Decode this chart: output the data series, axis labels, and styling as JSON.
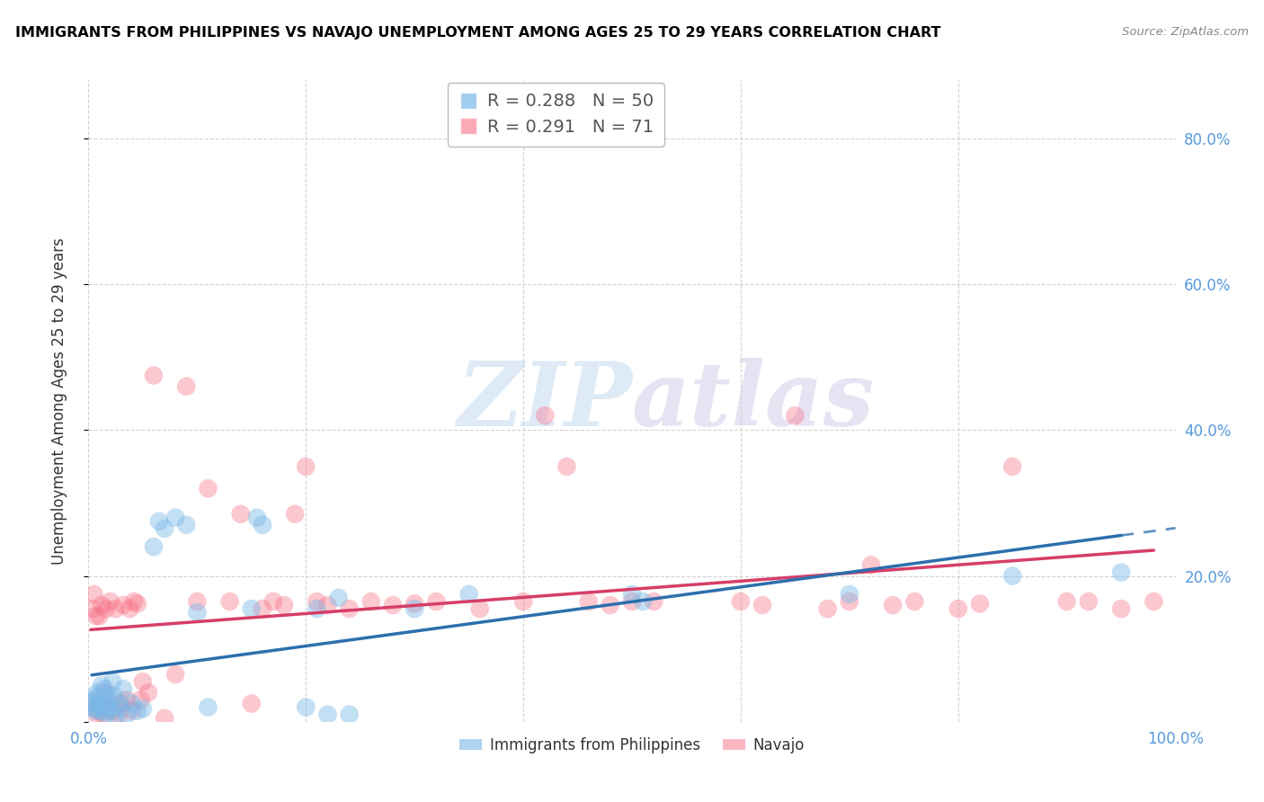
{
  "title": "IMMIGRANTS FROM PHILIPPINES VS NAVAJO UNEMPLOYMENT AMONG AGES 25 TO 29 YEARS CORRELATION CHART",
  "source": "Source: ZipAtlas.com",
  "ylabel": "Unemployment Among Ages 25 to 29 years",
  "xlim": [
    0,
    1.0
  ],
  "ylim": [
    0,
    0.88
  ],
  "legend_r_blue": "R = 0.288",
  "legend_n_blue": "N = 50",
  "legend_r_pink": "R = 0.291",
  "legend_n_pink": "N = 71",
  "blue_color": "#7ab8e8",
  "pink_color": "#f87085",
  "blue_line_color": "#2c6fad",
  "pink_line_color": "#d63e68",
  "watermark_zip": "ZIP",
  "watermark_atlas": "atlas",
  "blue_scatter_x": [
    0.003,
    0.004,
    0.005,
    0.006,
    0.007,
    0.008,
    0.009,
    0.01,
    0.011,
    0.012,
    0.013,
    0.014,
    0.015,
    0.016,
    0.017,
    0.018,
    0.019,
    0.02,
    0.022,
    0.024,
    0.025,
    0.028,
    0.03,
    0.032,
    0.035,
    0.04,
    0.045,
    0.05,
    0.06,
    0.065,
    0.07,
    0.08,
    0.09,
    0.1,
    0.11,
    0.15,
    0.155,
    0.16,
    0.2,
    0.21,
    0.22,
    0.23,
    0.24,
    0.3,
    0.35,
    0.5,
    0.51,
    0.7,
    0.85,
    0.95
  ],
  "blue_scatter_y": [
    0.03,
    0.025,
    0.02,
    0.018,
    0.015,
    0.04,
    0.035,
    0.028,
    0.022,
    0.05,
    0.015,
    0.025,
    0.045,
    0.01,
    0.038,
    0.03,
    0.02,
    0.015,
    0.055,
    0.035,
    0.01,
    0.025,
    0.02,
    0.045,
    0.01,
    0.025,
    0.015,
    0.018,
    0.24,
    0.275,
    0.265,
    0.28,
    0.27,
    0.15,
    0.02,
    0.155,
    0.28,
    0.27,
    0.02,
    0.155,
    0.01,
    0.17,
    0.01,
    0.155,
    0.175,
    0.175,
    0.165,
    0.175,
    0.2,
    0.205
  ],
  "pink_scatter_x": [
    0.002,
    0.004,
    0.005,
    0.007,
    0.008,
    0.009,
    0.01,
    0.011,
    0.012,
    0.014,
    0.015,
    0.016,
    0.018,
    0.02,
    0.022,
    0.025,
    0.028,
    0.03,
    0.032,
    0.035,
    0.038,
    0.04,
    0.042,
    0.045,
    0.048,
    0.05,
    0.055,
    0.06,
    0.07,
    0.08,
    0.09,
    0.1,
    0.11,
    0.13,
    0.14,
    0.15,
    0.16,
    0.17,
    0.18,
    0.19,
    0.2,
    0.21,
    0.22,
    0.24,
    0.26,
    0.28,
    0.3,
    0.32,
    0.36,
    0.4,
    0.42,
    0.44,
    0.46,
    0.48,
    0.5,
    0.52,
    0.6,
    0.62,
    0.65,
    0.68,
    0.7,
    0.72,
    0.74,
    0.76,
    0.8,
    0.82,
    0.85,
    0.9,
    0.92,
    0.95,
    0.98
  ],
  "pink_scatter_y": [
    0.025,
    0.155,
    0.175,
    0.145,
    0.01,
    0.015,
    0.145,
    0.02,
    0.16,
    0.01,
    0.04,
    0.155,
    0.02,
    0.165,
    0.015,
    0.155,
    0.01,
    0.025,
    0.16,
    0.03,
    0.155,
    0.015,
    0.165,
    0.162,
    0.03,
    0.055,
    0.04,
    0.475,
    0.005,
    0.065,
    0.46,
    0.165,
    0.32,
    0.165,
    0.285,
    0.025,
    0.155,
    0.165,
    0.16,
    0.285,
    0.35,
    0.165,
    0.16,
    0.155,
    0.165,
    0.16,
    0.162,
    0.165,
    0.155,
    0.165,
    0.42,
    0.35,
    0.165,
    0.16,
    0.165,
    0.165,
    0.165,
    0.16,
    0.42,
    0.155,
    0.165,
    0.215,
    0.16,
    0.165,
    0.155,
    0.162,
    0.35,
    0.165,
    0.165,
    0.155,
    0.165
  ]
}
